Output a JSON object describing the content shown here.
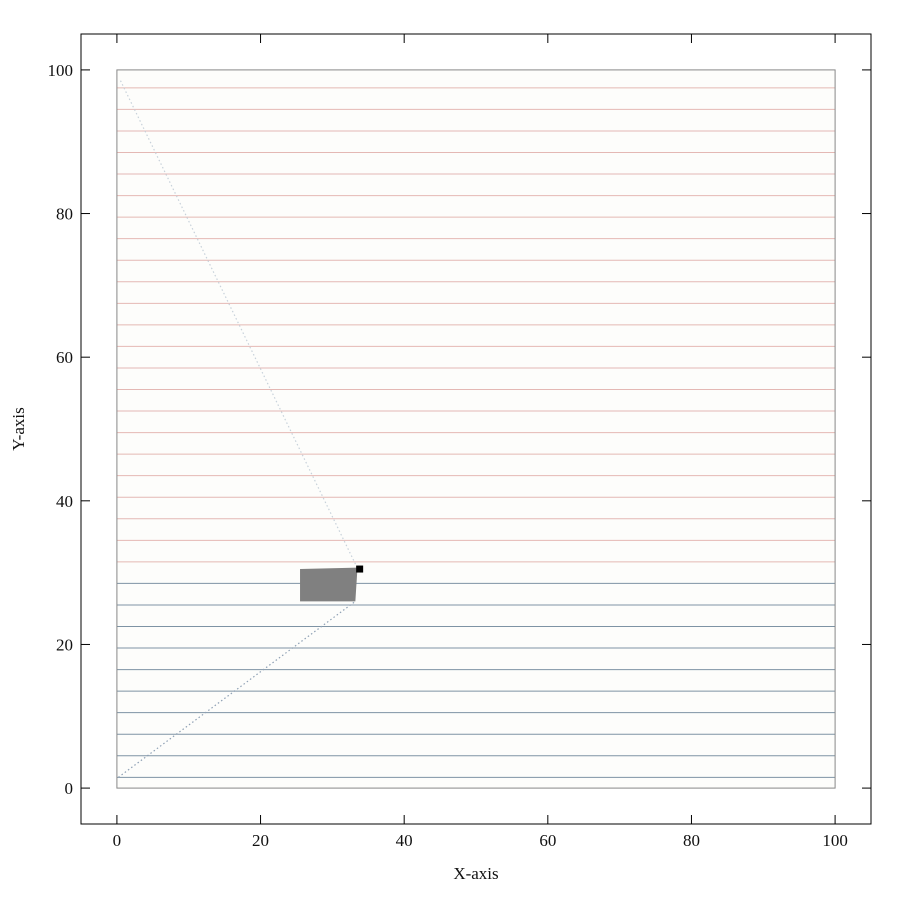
{
  "chart_data": {
    "type": "scatter",
    "title": "",
    "xlabel": "X-axis",
    "ylabel": "Y-axis",
    "xlim": [
      -5,
      105
    ],
    "ylim": [
      -5,
      105
    ],
    "xticks": [
      0,
      20,
      40,
      60,
      80,
      100
    ],
    "yticks": [
      0,
      20,
      40,
      60,
      80,
      100
    ],
    "grid": false,
    "plot_region": {
      "x": [
        0,
        100
      ],
      "y": [
        0,
        100
      ],
      "border_color": "#888888",
      "background": "#fdfdfb"
    },
    "horizontal_lines": {
      "lower_y": [
        1.5,
        4.5,
        7.5,
        10.5,
        13.5,
        16.5,
        19.5,
        22.5,
        25.5,
        28.5
      ],
      "lower_color": "#7e93a4",
      "upper_y": [
        31.5,
        34.5,
        37.5,
        40.5,
        43.5,
        46.5,
        49.5,
        52.5,
        55.5,
        58.5,
        61.5,
        64.5,
        67.5,
        70.5,
        73.5,
        76.5,
        79.5,
        82.5,
        85.5,
        88.5,
        91.5,
        94.5,
        97.5
      ],
      "upper_color": "#e4b8b4"
    },
    "rectangle": {
      "corners": [
        [
          25.5,
          30.5
        ],
        [
          33.5,
          30.7
        ],
        [
          33.2,
          26.0
        ],
        [
          25.5,
          26.0
        ]
      ],
      "color": "#808080"
    },
    "marker": {
      "x": 33.8,
      "y": 30.5,
      "color": "#000000"
    },
    "dotted_lines": [
      {
        "from": [
          0.5,
          98.5
        ],
        "to": [
          33.5,
          30.6
        ],
        "color": "#c7d1da"
      },
      {
        "from": [
          0.2,
          1.5
        ],
        "to": [
          33.2,
          26.0
        ],
        "color": "#8ea0b4"
      }
    ]
  }
}
